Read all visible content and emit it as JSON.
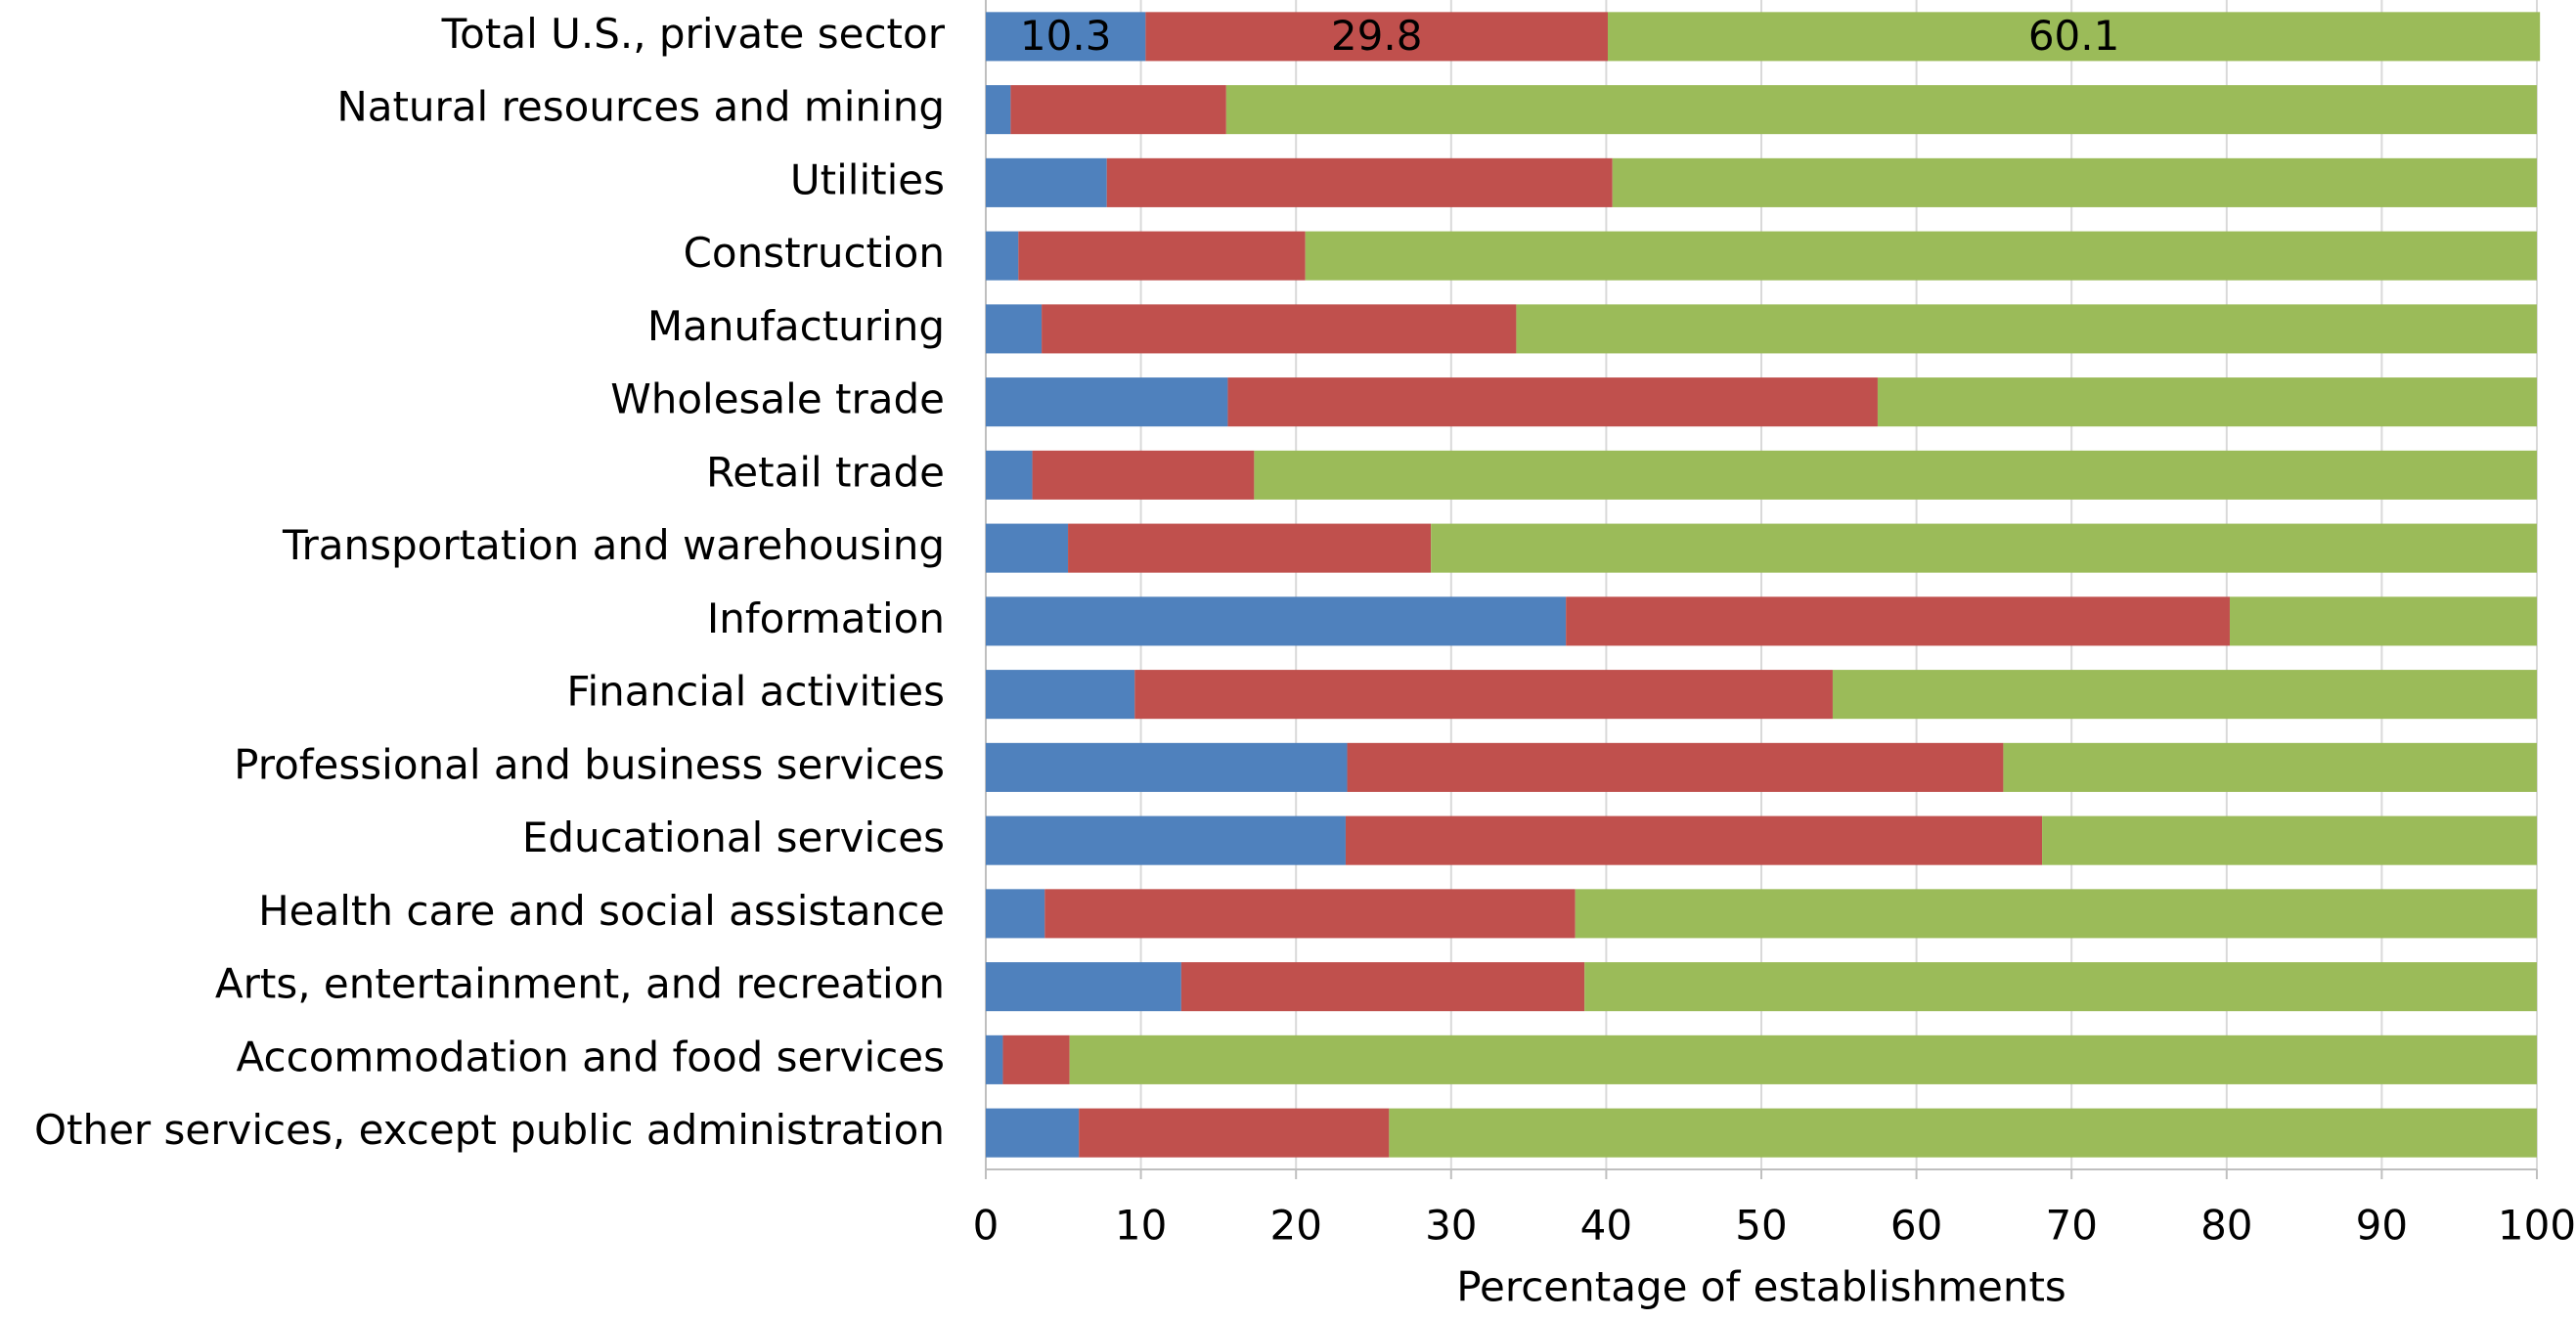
{
  "chart_data": {
    "type": "stacked_bar_horizontal",
    "categories": [
      "Total U.S., private sector",
      "Natural resources and mining",
      "Utilities",
      "Construction",
      "Manufacturing",
      "Wholesale trade",
      "Retail trade",
      "Transportation and warehousing",
      "Information",
      "Financial activities",
      "Professional and business services",
      "Educational services",
      "Health care and social assistance",
      "Arts, entertainment, and recreation",
      "Accommodation and food services",
      "Other services, except public administration"
    ],
    "series": [
      {
        "color": "#4f81bd",
        "values": [
          10.3,
          1.6,
          7.8,
          2.1,
          3.6,
          15.6,
          3.0,
          5.3,
          37.4,
          9.6,
          23.3,
          23.2,
          3.8,
          12.6,
          1.1,
          6.0
        ],
        "value_labels": [
          "10.3",
          null,
          null,
          null,
          null,
          null,
          null,
          null,
          null,
          null,
          null,
          null,
          null,
          null,
          null,
          null
        ]
      },
      {
        "color": "#c0504d",
        "values": [
          29.8,
          13.9,
          32.6,
          18.5,
          30.6,
          41.9,
          14.3,
          23.4,
          42.8,
          45.0,
          42.3,
          44.9,
          34.2,
          26.0,
          4.3,
          20.0
        ],
        "value_labels": [
          "29.8",
          null,
          null,
          null,
          null,
          null,
          null,
          null,
          null,
          null,
          null,
          null,
          null,
          null,
          null,
          null
        ]
      },
      {
        "color": "#9bbb59",
        "values": [
          60.1,
          84.5,
          59.6,
          79.4,
          65.8,
          42.5,
          82.7,
          71.3,
          19.8,
          45.4,
          34.4,
          31.9,
          62.0,
          61.4,
          94.6,
          74.0
        ],
        "value_labels": [
          "60.1",
          null,
          null,
          null,
          null,
          null,
          null,
          null,
          null,
          null,
          null,
          null,
          null,
          null,
          null,
          null
        ]
      }
    ],
    "xlabel": "Percentage of establishments",
    "xlim": [
      0,
      100
    ],
    "xticks": [
      0,
      10,
      20,
      30,
      40,
      50,
      60,
      70,
      80,
      90,
      100
    ],
    "grid": true
  }
}
